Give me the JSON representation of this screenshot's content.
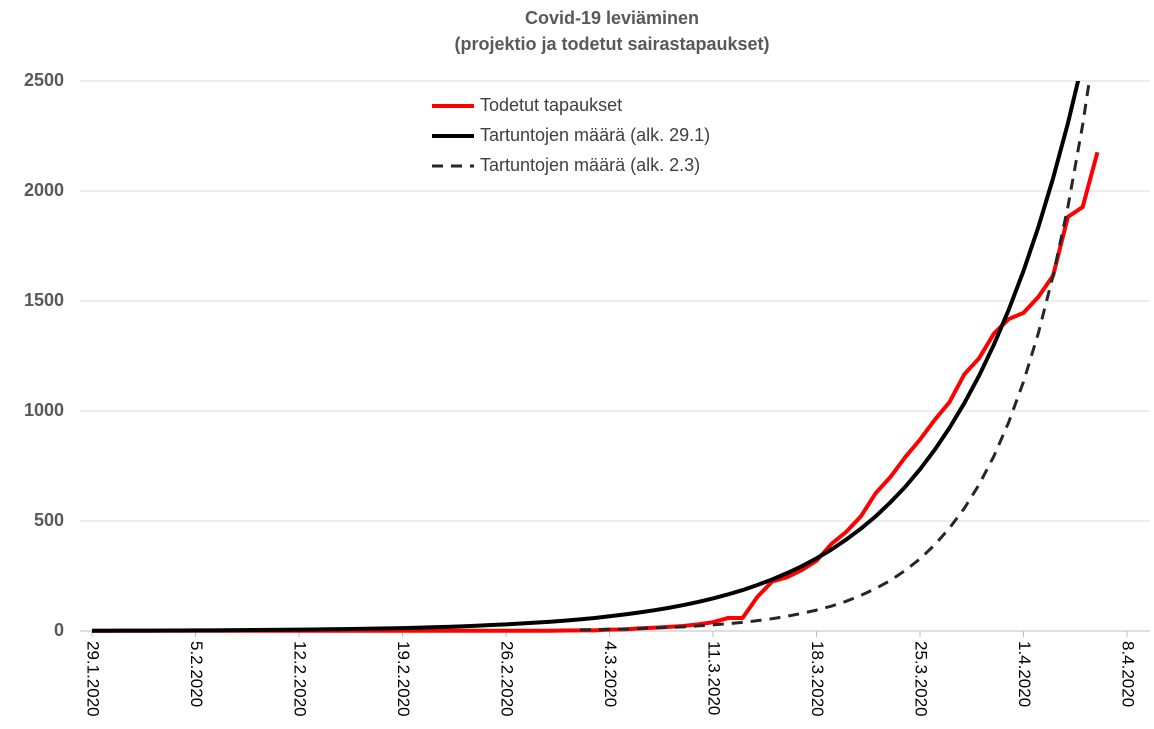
{
  "chart_data": {
    "type": "line",
    "title": "Covid-19 leviäminen",
    "subtitle": "(projektio ja todetut sairastapaukset)",
    "categories": [
      "29.1.2020",
      null,
      null,
      null,
      null,
      null,
      null,
      "5.2.2020",
      null,
      null,
      null,
      null,
      null,
      null,
      "12.2.2020",
      null,
      null,
      null,
      null,
      null,
      null,
      "19.2.2020",
      null,
      null,
      null,
      null,
      null,
      null,
      "26.2.2020",
      null,
      null,
      null,
      null,
      null,
      null,
      "4.3.2020",
      null,
      null,
      null,
      null,
      null,
      null,
      "11.3.2020",
      null,
      null,
      null,
      null,
      null,
      null,
      "18.3.2020",
      null,
      null,
      null,
      null,
      null,
      null,
      "25.3.2020",
      null,
      null,
      null,
      null,
      null,
      null,
      "1.4.2020",
      null,
      null,
      null,
      null,
      null,
      null,
      "8.4.2020"
    ],
    "series": [
      {
        "name": "Todetut tapaukset",
        "color": "#ff0000",
        "linestyle": "solid",
        "values": [
          1,
          1,
          1,
          1,
          1,
          1,
          1,
          1,
          1,
          1,
          1,
          1,
          1,
          1,
          1,
          1,
          1,
          1,
          1,
          1,
          1,
          1,
          1,
          1,
          1,
          1,
          1,
          1,
          1,
          1,
          1,
          1,
          2,
          3,
          3,
          6,
          7,
          12,
          15,
          19,
          23,
          30,
          40,
          59,
          59,
          155,
          225,
          244,
          277,
          319,
          395,
          450,
          521,
          626,
          700,
          790,
          870,
          960,
          1041,
          1167,
          1240,
          1352,
          1418,
          1446,
          1518,
          1615,
          1882,
          1927,
          2176,
          null,
          null
        ]
      },
      {
        "name": "Tartuntojen määrä (alk. 29.1)",
        "color": "#000000",
        "linestyle": "solid",
        "values": [
          1.2,
          1.4,
          1.5,
          1.7,
          1.9,
          2.2,
          2.4,
          2.7,
          3.1,
          3.4,
          3.9,
          4.3,
          4.9,
          5.4,
          6.1,
          6.8,
          7.7,
          8.6,
          9.6,
          11,
          12,
          13,
          15,
          17,
          19,
          21,
          24,
          27,
          30,
          34,
          38,
          42,
          47,
          53,
          59,
          67,
          75,
          84,
          94,
          105,
          118,
          132,
          148,
          166,
          186,
          209,
          234,
          263,
          294,
          330,
          370,
          415,
          465,
          521,
          585,
          655,
          735,
          824,
          924,
          1036,
          1161,
          1302,
          1460,
          1637,
          1835,
          2058,
          2307,
          2587,
          null,
          null,
          null
        ]
      },
      {
        "name": "Tartuntojen määrä (alk. 2.3)",
        "color": "#262626",
        "linestyle": "dashed",
        "values": [
          null,
          null,
          null,
          null,
          null,
          null,
          null,
          null,
          null,
          null,
          null,
          null,
          null,
          null,
          null,
          null,
          null,
          null,
          null,
          null,
          null,
          null,
          null,
          null,
          null,
          null,
          null,
          null,
          null,
          null,
          null,
          null,
          null,
          5.6,
          6.6,
          7.9,
          9.4,
          11,
          14,
          16,
          19,
          23,
          28,
          33,
          39,
          47,
          56,
          67,
          80,
          95,
          113,
          135,
          162,
          193,
          230,
          275,
          328,
          392,
          468,
          558,
          666,
          795,
          949,
          1133,
          1353,
          1615,
          1927,
          2300,
          2746,
          null,
          null
        ]
      }
    ],
    "ylim": [
      0,
      2500
    ],
    "yticks": [
      0,
      500,
      1000,
      1500,
      2000,
      2500
    ],
    "grid": true
  }
}
